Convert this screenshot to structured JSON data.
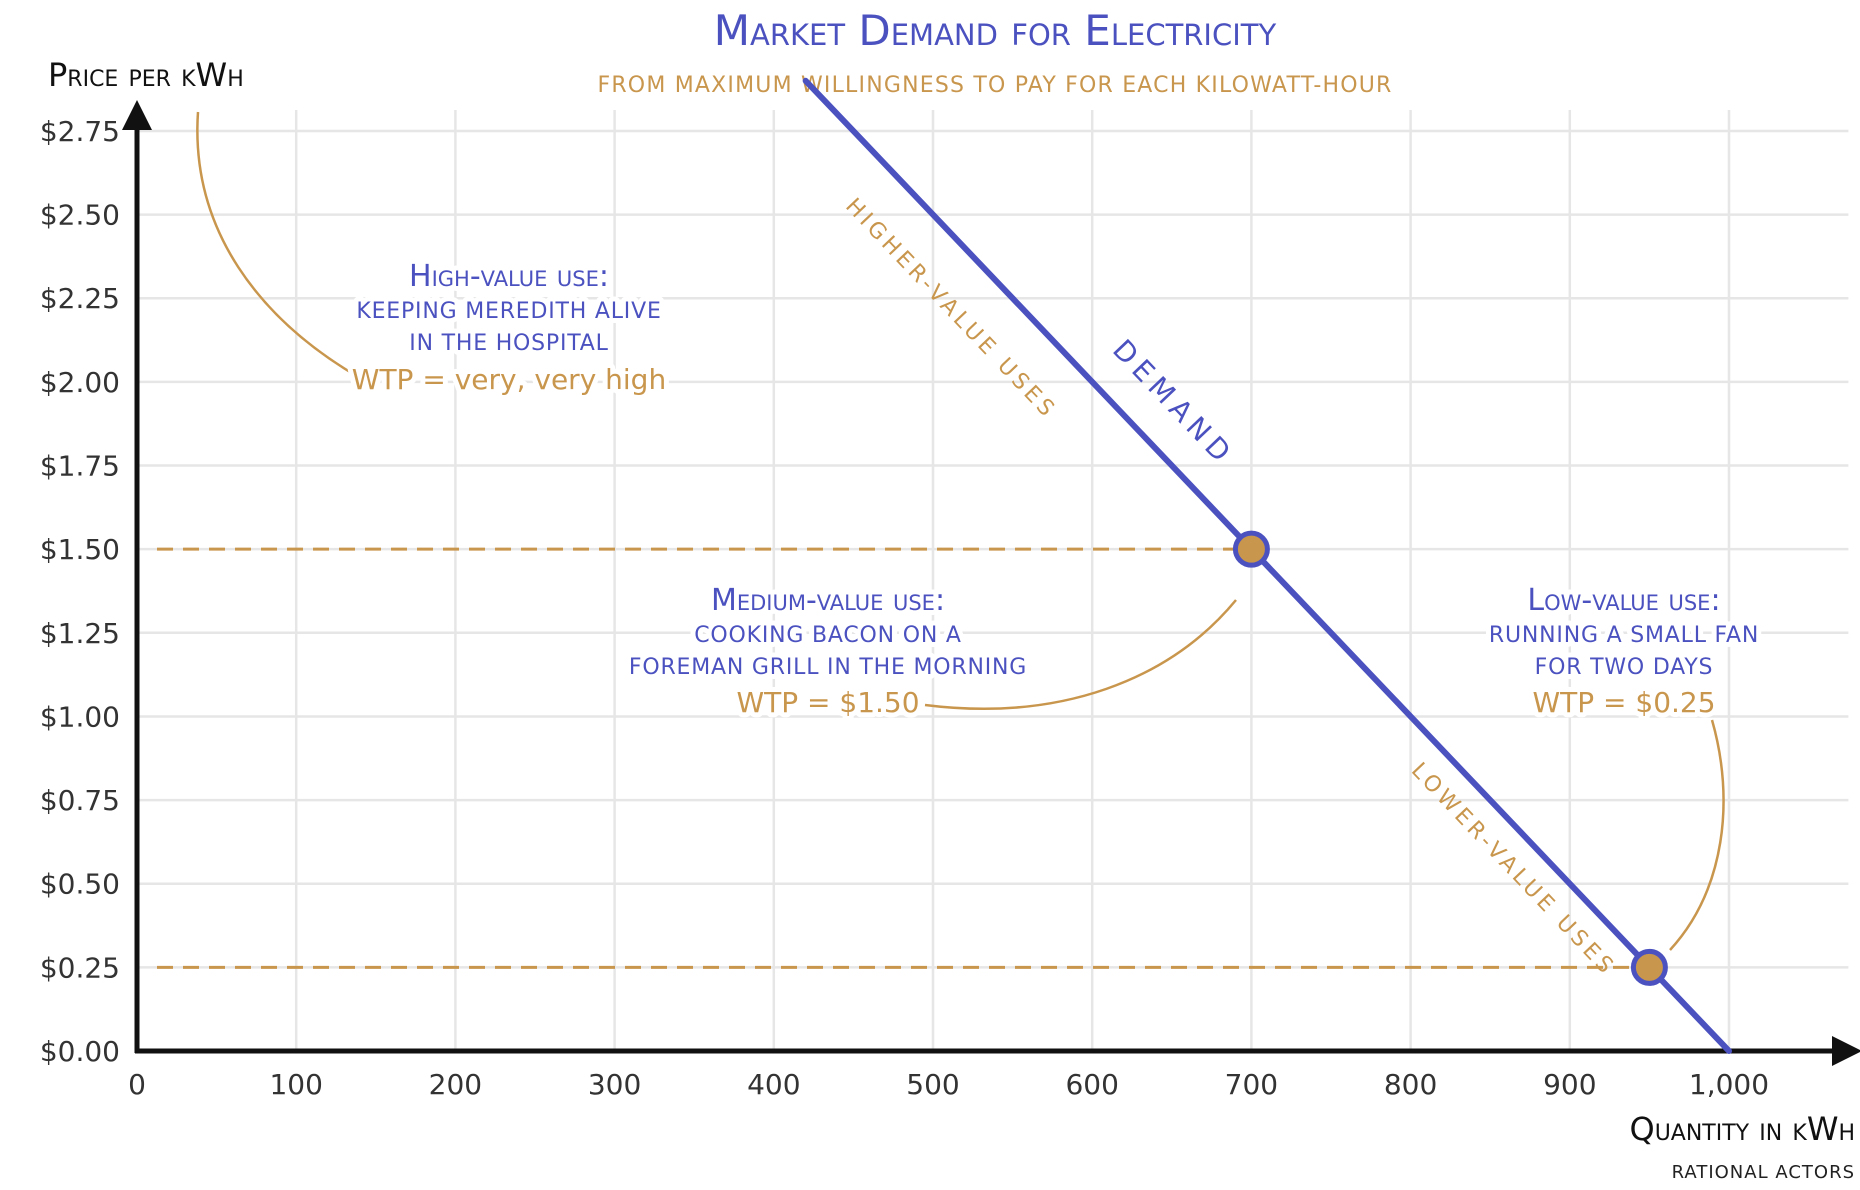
{
  "chart_data": {
    "type": "line",
    "title": "Market Demand for Electricity",
    "subtitle": "from maximum willingness to pay for each kilowatt-hour",
    "xlabel": "Quantity in kWh",
    "ylabel": "Price per kWh",
    "source": "rational actors",
    "xlim": [
      0,
      1075
    ],
    "ylim": [
      0,
      2.9
    ],
    "grid": true,
    "x_ticks": [
      {
        "value": 0,
        "label": "0"
      },
      {
        "value": 100,
        "label": "100"
      },
      {
        "value": 200,
        "label": "200"
      },
      {
        "value": 300,
        "label": "300"
      },
      {
        "value": 400,
        "label": "400"
      },
      {
        "value": 500,
        "label": "500"
      },
      {
        "value": 600,
        "label": "600"
      },
      {
        "value": 700,
        "label": "700"
      },
      {
        "value": 800,
        "label": "800"
      },
      {
        "value": 900,
        "label": "900"
      },
      {
        "value": 1000,
        "label": "1,000"
      }
    ],
    "y_ticks": [
      {
        "value": 0,
        "label": "$0.00"
      },
      {
        "value": 0.25,
        "label": "$0.25"
      },
      {
        "value": 0.5,
        "label": "$0.50"
      },
      {
        "value": 0.75,
        "label": "$0.75"
      },
      {
        "value": 1.0,
        "label": "$1.00"
      },
      {
        "value": 1.25,
        "label": "$1.25"
      },
      {
        "value": 1.5,
        "label": "$1.50"
      },
      {
        "value": 1.75,
        "label": "$1.75"
      },
      {
        "value": 2.0,
        "label": "$2.00"
      },
      {
        "value": 2.25,
        "label": "$2.25"
      },
      {
        "value": 2.5,
        "label": "$2.50"
      },
      {
        "value": 2.75,
        "label": "$2.75"
      }
    ],
    "series": [
      {
        "name": "Demand",
        "color": "#4b52c0",
        "points": [
          {
            "x": 420,
            "y": 2.9
          },
          {
            "x": 1000,
            "y": 0
          }
        ]
      }
    ],
    "highlight_points": [
      {
        "x": 700,
        "y": 1.5,
        "color": "#c9964d"
      },
      {
        "x": 950,
        "y": 0.25,
        "color": "#c9964d"
      }
    ],
    "reference_lines": [
      {
        "y": 1.5,
        "x_from": 0,
        "x_to": 700
      },
      {
        "y": 0.25,
        "x_from": 0,
        "x_to": 950
      }
    ],
    "line_labels": {
      "upper": "higher-value uses",
      "lower": "lower-value uses"
    },
    "annotations": [
      {
        "heading": "High-value use:",
        "lines": [
          "keeping Meredith alive",
          "in the hospital"
        ],
        "wtp": "WTP = very, very high"
      },
      {
        "heading": "Medium-value use:",
        "lines": [
          "cooking bacon on a",
          "Foreman grill in the morning"
        ],
        "wtp": "WTP = $1.50"
      },
      {
        "heading": "Low-value use:",
        "lines": [
          "running a small fan",
          "for two days"
        ],
        "wtp": "WTP = $0.25"
      }
    ],
    "colors": {
      "blue": "#4b52c0",
      "orange": "#c9964d",
      "axis": "#111111",
      "grid": "#e6e6e6"
    }
  }
}
